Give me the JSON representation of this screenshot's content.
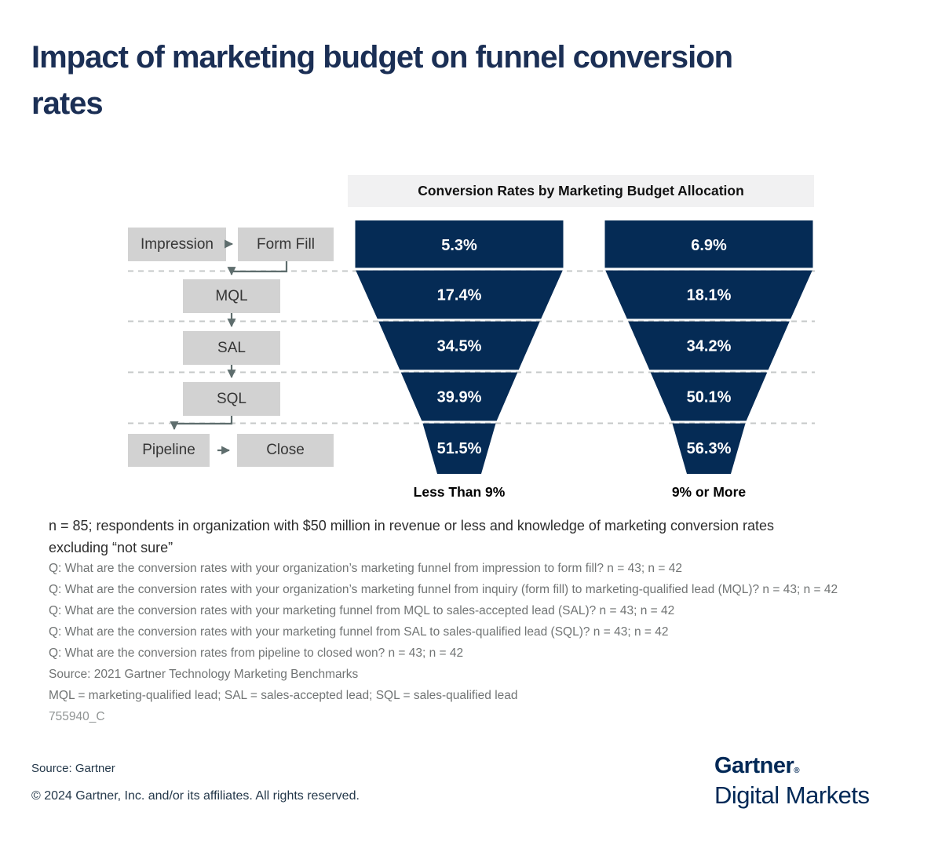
{
  "title": "Impact of marketing budget on funnel conversion rates",
  "colors": {
    "funnel_navy": "#052b55",
    "title_navy": "#1b2f55",
    "logo_navy": "#002856",
    "box_gray": "#d2d2d2",
    "header_bg": "#f1f1f2",
    "connector_gray": "#5e6d6d",
    "dash_gray": "#c5c8c8",
    "note_dark": "#2d2d2d",
    "note_gray": "#717474"
  },
  "chart_data": {
    "type": "funnel",
    "title": "Conversion Rates by Marketing Budget Allocation",
    "stages": [
      "Impression → Form Fill",
      "Form Fill → MQL",
      "MQL → SAL",
      "SAL → SQL",
      "Pipeline → Close"
    ],
    "series": [
      {
        "name": "Less Than 9%",
        "values": [
          5.3,
          17.4,
          34.5,
          39.9,
          51.5
        ]
      },
      {
        "name": "9% or More",
        "values": [
          6.9,
          18.1,
          34.2,
          50.1,
          56.3
        ]
      }
    ],
    "unit": "%",
    "legend_position": "bottom",
    "grid": "dashed horizontal stage dividers"
  },
  "flow": {
    "impression": "Impression",
    "form_fill": "Form Fill",
    "mql": "MQL",
    "sal": "SAL",
    "sql": "SQL",
    "pipeline": "Pipeline",
    "close": "Close"
  },
  "notes": {
    "base": "n = 85; respondents in organization with $50 million in revenue or less and knowledge of marketing conversion rates excluding “not sure”",
    "questions": [
      "Q: What are the conversion rates with your organization’s marketing funnel from impression to form fill? n = 43; n = 42",
      "Q: What are the conversion rates with your organization’s marketing funnel from inquiry (form fill) to marketing-qualified lead (MQL)? n = 43; n = 42",
      "Q: What are the conversion rates with your marketing funnel from MQL to sales-accepted lead (SAL)? n = 43; n = 42",
      "Q: What are the conversion rates with your marketing funnel from SAL to sales-qualified lead (SQL)? n = 43; n = 42",
      "Q: What are the conversion rates from pipeline to closed won? n = 43; n = 42"
    ],
    "source": "Source: 2021 Gartner Technology Marketing Benchmarks",
    "abbreviations": "MQL = marketing-qualified lead; SAL = sales-accepted lead; SQL = sales-qualified lead",
    "doc_code": "755940_C"
  },
  "footer": {
    "source": "Source: Gartner",
    "copyright": "© 2024 Gartner, Inc. and/or its affiliates. All rights reserved.",
    "logo_primary": "Gartner",
    "logo_registered": "®",
    "logo_secondary": "Digital Markets"
  }
}
